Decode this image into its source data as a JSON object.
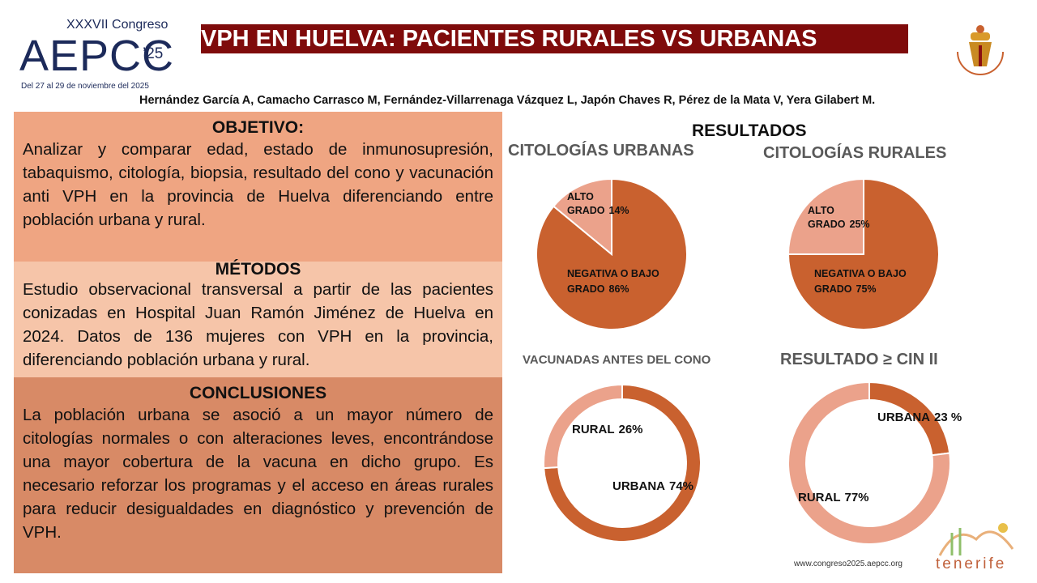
{
  "header": {
    "congress_edition": "XXXVII Congreso",
    "congress_name": "AEPCC",
    "congress_year": "’25",
    "dates": "Del 27 al 29 de noviembre del 2025",
    "title": "VPH EN HUELVA: PACIENTES RURALES VS URBANAS",
    "authors": "Hernández García A, Camacho Carrasco M, Fernández-Villarrenaga Vázquez L, Japón Chaves R, Pérez de la Mata V, Yera Gilabert M."
  },
  "sections": [
    {
      "heading": "OBJETIVO:",
      "text": "Analizar y comparar edad, estado de inmunosupresión, tabaquismo, citología, biopsia, resultado del cono y vacunación anti VPH en la provincia de Huelva diferenciando entre población urbana y rural."
    },
    {
      "heading": "MÉTODOS",
      "text": "Estudio observacional transversal a partir de las pacientes conizadas en Hospital Juan Ramón Jiménez de Huelva en 2024. Datos de 136 mujeres con VPH en la provincia, diferenciando población urbana y rural."
    },
    {
      "heading": "CONCLUSIONES",
      "text": "La población urbana se asoció a un mayor número de citologías normales o con alteraciones leves, encontrándose una mayor cobertura de la vacuna en dicho grupo.  Es necesario reforzar los programas y el acceso en áreas rurales para reducir desigualdades en diagnóstico y prevención de VPH."
    }
  ],
  "results_heading": "RESULTADOS",
  "chart_data": [
    {
      "type": "pie",
      "title": "CITOLOGÍAS URBANAS",
      "categories": [
        "NEGATIVA O BAJO GRADO",
        "ALTO GRADO"
      ],
      "values": [
        86,
        14
      ],
      "value_labels": [
        "86%",
        "14%"
      ],
      "colors": [
        "#c9612f",
        "#eba28b"
      ]
    },
    {
      "type": "pie",
      "title": "CITOLOGÍAS RURALES",
      "categories": [
        "NEGATIVA O BAJO GRADO",
        "ALTO GRADO"
      ],
      "values": [
        75,
        25
      ],
      "value_labels": [
        "75%",
        "25%"
      ],
      "colors": [
        "#c9612f",
        "#eba28b"
      ]
    },
    {
      "type": "donut",
      "title": "VACUNADAS ANTES DEL CONO",
      "categories": [
        "URBANA",
        "RURAL"
      ],
      "values": [
        74,
        26
      ],
      "value_labels": [
        "74%",
        "26%"
      ],
      "colors": [
        "#c9612f",
        "#eba28b"
      ]
    },
    {
      "type": "donut",
      "title": "RESULTADO ≥ CIN II",
      "categories": [
        "URBANA",
        "RURAL"
      ],
      "values": [
        23,
        77
      ],
      "value_labels": [
        "23 %",
        "77%"
      ],
      "colors": [
        "#c9612f",
        "#eba28b"
      ]
    }
  ],
  "footer": {
    "website": "www.congreso2025.aepcc.org",
    "location": "tenerife"
  }
}
